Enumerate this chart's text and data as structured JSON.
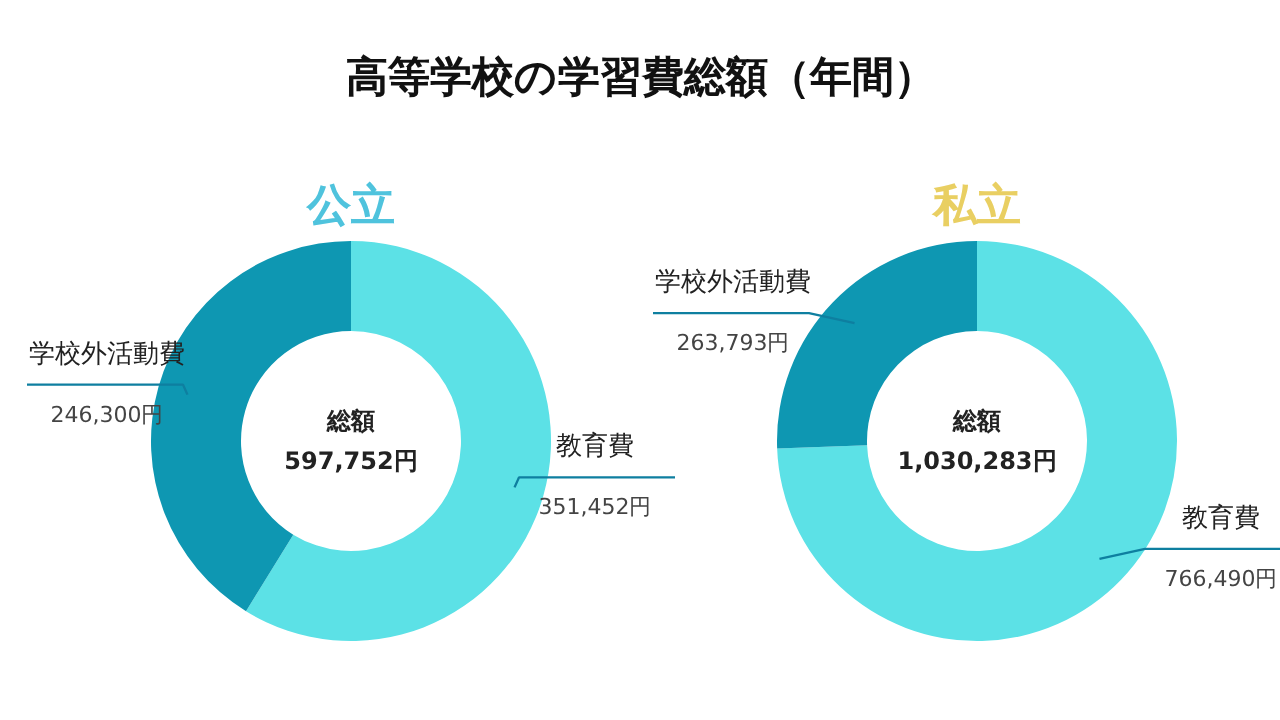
{
  "chart_data": [
    {
      "type": "donut",
      "title": "公立",
      "annotations": [
        "高等学校の学習費総額（年間）",
        "総額",
        "597,752円"
      ],
      "categories": [
        "教育費",
        "学校外活動費"
      ],
      "values": [
        351452,
        246300
      ],
      "colors": [
        "#5ce1e6",
        "#0e97b2"
      ],
      "value_labels": [
        "351,452円",
        "246,300円"
      ]
    },
    {
      "type": "donut",
      "title": "私立",
      "annotations": [
        "総額",
        "1,030,283円"
      ],
      "categories": [
        "教育費",
        "学校外活動費"
      ],
      "values": [
        766490,
        263793
      ],
      "colors": [
        "#5ce1e6",
        "#0e97b2"
      ],
      "value_labels": [
        "766,490円",
        "263,793円"
      ]
    }
  ]
}
